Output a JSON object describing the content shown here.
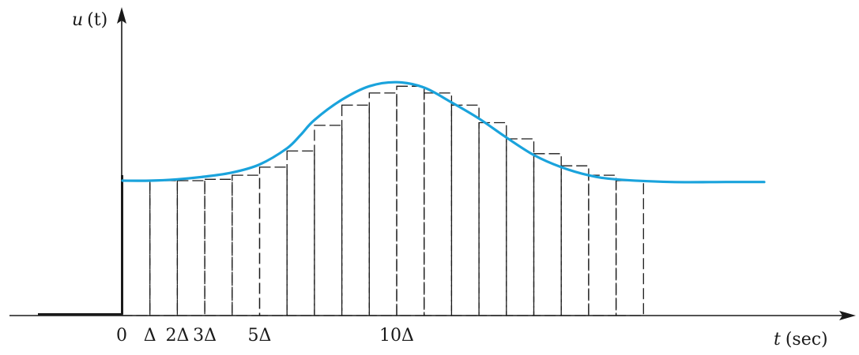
{
  "axes": {
    "y_label_var": "u",
    "y_label_arg": "(t)",
    "x_label_var": "t",
    "x_label_unit": "(sec)"
  },
  "tick_labels": [
    {
      "text": "0",
      "position_in_delta": 0
    },
    {
      "text": "Δ",
      "position_in_delta": 1
    },
    {
      "text": "2Δ",
      "position_in_delta": 2
    },
    {
      "text": "3Δ",
      "position_in_delta": 3
    },
    {
      "text": "5Δ",
      "position_in_delta": 5
    },
    {
      "text": "10Δ",
      "position_in_delta": 10
    }
  ],
  "colors": {
    "curve": "#1aa3dc",
    "lines": "#1a1a1a"
  },
  "chart_data": {
    "type": "area",
    "description_of_marks": "continuous signal u(t) approximated by rectangular pulses of width Δ",
    "pulse_heights": [
      1.0,
      1.0,
      1.0,
      1.01,
      1.04,
      1.1,
      1.22,
      1.41,
      1.56,
      1.65,
      1.7,
      1.65,
      1.56,
      1.43,
      1.31,
      1.2,
      1.11,
      1.04,
      1.0
    ],
    "curve": {
      "x_in_delta": [
        0,
        1,
        2,
        3,
        4,
        5,
        6,
        6.5,
        7,
        8,
        9,
        10,
        11,
        12,
        13,
        14,
        15,
        16,
        17,
        18,
        20,
        22,
        23.4
      ],
      "u": [
        1.0,
        1.0,
        1.01,
        1.03,
        1.06,
        1.12,
        1.24,
        1.34,
        1.45,
        1.6,
        1.7,
        1.73,
        1.69,
        1.58,
        1.46,
        1.32,
        1.19,
        1.1,
        1.04,
        1.01,
        0.99,
        0.99,
        0.99
      ]
    },
    "u_before_zero": 0
  }
}
